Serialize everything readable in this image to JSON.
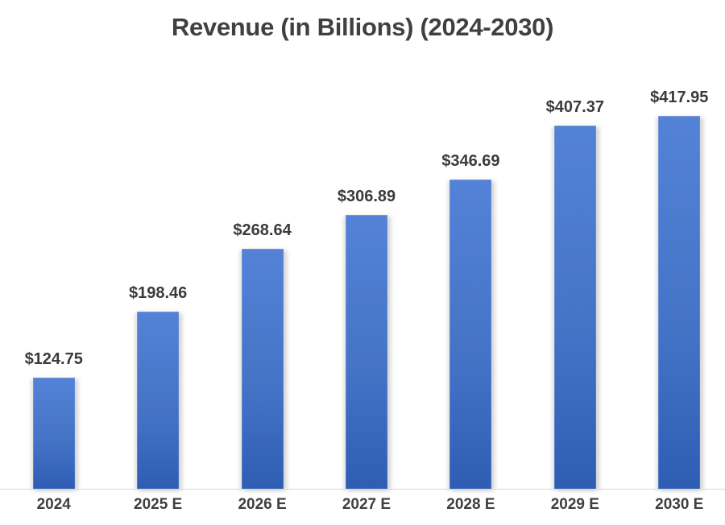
{
  "chart_data": {
    "type": "bar",
    "title": "Revenue (in Billions) (2024-2030)",
    "categories": [
      "2024",
      "2025 E",
      "2026 E",
      "2027 E",
      "2028 E",
      "2029 E",
      "2030 E"
    ],
    "values": [
      124.75,
      198.46,
      268.64,
      306.89,
      346.69,
      407.37,
      417.95
    ],
    "data_labels": [
      "$124.75",
      "$198.46",
      "$268.64",
      "$306.89",
      "$346.69",
      "$407.37",
      "$417.95"
    ],
    "xlabel": "",
    "ylabel": "",
    "ylim": [
      0,
      470
    ],
    "grid": false,
    "legend": "none",
    "colors": {
      "bar_base": "#4472C4",
      "bar_gradient_top": "#5382d6",
      "bar_gradient_mid": "#4574c7",
      "bar_gradient_bottom": "#2e5db4",
      "title_text": "#404040",
      "label_text": "#3b3b3b",
      "axis_line": "#d6d6d6"
    }
  }
}
